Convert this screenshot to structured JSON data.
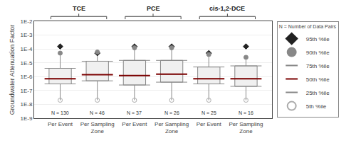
{
  "chart_data": {
    "type": "box",
    "ylabel": "Groundwater Attenuation Factor",
    "categories": [
      "Per Event",
      "Per Sampling Zone",
      "Per Event",
      "Per Sampling Zone",
      "Per Event",
      "Per Sampling Zone"
    ],
    "category_groups": [
      "TCE",
      "TCE",
      "PCE",
      "PCE",
      "cis-1,2-DCE",
      "cis-1,2-DCE"
    ],
    "n_labels": [
      "N = 130",
      "N = 46",
      "N = 37",
      "N = 26",
      "N = 25",
      "N = 16"
    ],
    "series": [
      {
        "name": "95th %ile",
        "color": "#222222",
        "marker": "diamond",
        "values": [
          0.00015,
          5e-05,
          0.00015,
          0.00015,
          5e-05,
          0.00015
        ]
      },
      {
        "name": "90th %ile",
        "color": "#888888",
        "marker": "circle",
        "values": [
          5e-05,
          6e-05,
          0.00012,
          0.00012,
          4e-05,
          2.5e-05
        ]
      },
      {
        "name": "75th %ile",
        "color": "#888888",
        "marker": "line-ew",
        "values": [
          4e-06,
          1.3e-05,
          1.5e-05,
          1.5e-05,
          5e-06,
          6e-06
        ]
      },
      {
        "name": "50th %ile",
        "color": "#7b0000",
        "marker": "line-ew",
        "values": [
          7e-07,
          1.4e-06,
          1.2e-06,
          1.5e-06,
          7e-07,
          7e-07
        ]
      },
      {
        "name": "25th %ile",
        "color": "#888888",
        "marker": "line-ew",
        "values": [
          3e-07,
          5e-07,
          2.5e-07,
          4e-07,
          3e-07,
          2e-07
        ]
      },
      {
        "name": "5th %ile",
        "color": "#aaaaaa",
        "marker": "circle-open",
        "values": [
          2e-08,
          2e-08,
          2e-08,
          2e-08,
          2e-08,
          2e-08
        ]
      }
    ],
    "ylim": [
      1e-09,
      0.01
    ],
    "yticks": [
      {
        "value": 1e-09,
        "label": "1E-9"
      },
      {
        "value": 1e-08,
        "label": "1E-8"
      },
      {
        "value": 1e-07,
        "label": "1E-7"
      },
      {
        "value": 1e-06,
        "label": "1E-6"
      },
      {
        "value": 1e-05,
        "label": "1E-5"
      },
      {
        "value": 0.0001,
        "label": "1E-4"
      },
      {
        "value": 0.001,
        "label": "1E-3"
      },
      {
        "value": 0.01,
        "label": "1E-2"
      }
    ],
    "log": "y",
    "grid": true,
    "legend": "right",
    "annotation": "N = Number of Data Pairs"
  }
}
